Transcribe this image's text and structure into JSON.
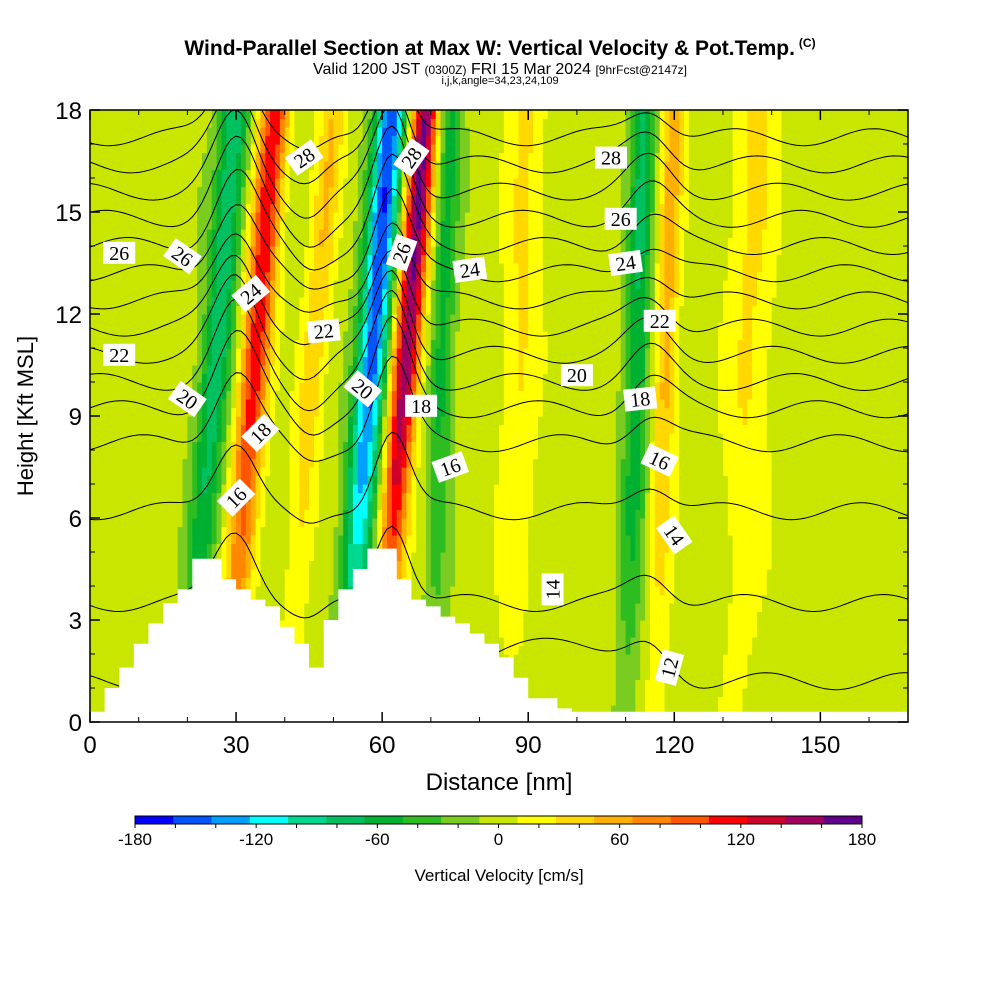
{
  "titles": {
    "main": "Wind-Parallel Section at Max W: Vertical Velocity & Pot.Temp.",
    "copyright_mark": "(C)",
    "valid_prefix": "Valid 1200 JST",
    "valid_utc": "(0300Z)",
    "valid_date": "FRI 15 Mar 2024",
    "forecast_info": "[9hrFcst@2147z]",
    "indices": "i,j,k,angle=34,23,24,109"
  },
  "chart_data": {
    "type": "heatmap",
    "title": "Wind-Parallel Section at Max W: Vertical Velocity & Pot.Temp.",
    "xlabel": "Distance [nm]",
    "ylabel": "Height [Kft MSL]",
    "xlim": [
      0,
      168
    ],
    "ylim": [
      0,
      18
    ],
    "xticks": [
      0,
      30,
      60,
      90,
      120,
      150
    ],
    "yticks": [
      0,
      3,
      6,
      9,
      12,
      15,
      18
    ],
    "colorbar": {
      "label": "Vertical Velocity [cm/s]",
      "range": [
        -180,
        180
      ],
      "step": 20,
      "tick_labels": [
        -180,
        -120,
        -60,
        0,
        60,
        120,
        180
      ],
      "colors": [
        "#0000ff",
        "#0055ff",
        "#00a0ff",
        "#00ffff",
        "#00d890",
        "#00c060",
        "#00b030",
        "#2ebd20",
        "#7acc20",
        "#c8e600",
        "#ffff00",
        "#ffd800",
        "#ffb000",
        "#ff8800",
        "#ff5500",
        "#ff0000",
        "#d0002a",
        "#a00060",
        "#60008a"
      ]
    },
    "velocity_features": [
      {
        "x": 25,
        "peak": -85,
        "width": 3.2
      },
      {
        "x": 33,
        "peak": 130,
        "width": 3.0
      },
      {
        "x": 45,
        "peak": 50,
        "width": 2.8
      },
      {
        "x": 57,
        "peak": -165,
        "width": 3.2
      },
      {
        "x": 64,
        "peak": 175,
        "width": 2.8
      },
      {
        "x": 72,
        "peak": -55,
        "width": 2.5
      },
      {
        "x": 88,
        "peak": 35,
        "width": 4.0
      },
      {
        "x": 112,
        "peak": -70,
        "width": 2.6
      },
      {
        "x": 118,
        "peak": 60,
        "width": 2.4
      },
      {
        "x": 135,
        "peak": 35,
        "width": 5.0
      }
    ],
    "terrain": {
      "x": [
        0,
        3,
        3,
        6,
        6,
        9,
        9,
        12,
        12,
        15,
        15,
        18,
        18,
        21,
        21,
        24,
        24,
        27,
        27,
        30,
        30,
        33,
        33,
        36,
        36,
        39,
        39,
        42,
        42,
        45,
        45,
        48,
        48,
        51,
        51,
        54,
        54,
        57,
        57,
        63,
        63,
        66,
        66,
        69,
        69,
        72,
        72,
        75,
        75,
        78,
        78,
        81,
        81,
        84,
        84,
        87,
        87,
        90,
        90,
        93,
        93,
        96,
        96,
        99,
        99,
        102,
        102,
        105,
        105,
        108,
        108,
        150,
        150,
        155,
        155,
        160,
        160,
        165,
        165,
        168
      ],
      "y": [
        0.3,
        0.3,
        1.0,
        1.0,
        1.6,
        1.6,
        2.3,
        2.3,
        2.9,
        2.9,
        3.5,
        3.5,
        3.9,
        3.9,
        4.8,
        4.8,
        4.8,
        4.8,
        4.2,
        4.2,
        3.9,
        3.9,
        3.6,
        3.6,
        3.4,
        3.4,
        2.8,
        2.8,
        2.3,
        2.3,
        1.6,
        1.6,
        3.0,
        3.0,
        3.9,
        3.9,
        4.5,
        4.5,
        5.1,
        5.1,
        4.2,
        4.2,
        3.6,
        3.6,
        3.4,
        3.4,
        3.1,
        3.1,
        2.9,
        2.9,
        2.6,
        2.6,
        2.3,
        2.3,
        1.9,
        1.9,
        1.3,
        1.3,
        0.7,
        0.7,
        0.7,
        0.7,
        0.4,
        0.4,
        0.3,
        0.3,
        0.3,
        0.3,
        0.3,
        0.3,
        0.3,
        0.3,
        0.3,
        0.3,
        0.3,
        0.3,
        0.3,
        0.3,
        0.3,
        0.3
      ]
    },
    "theta_contours": {
      "levels_c": [
        12,
        13,
        14,
        15,
        16,
        17,
        18,
        19,
        20,
        21,
        22,
        23,
        24,
        25,
        26,
        27,
        28,
        29
      ],
      "base_height_kft": [
        -4.2,
        -3,
        -1,
        1.2,
        3.5,
        6.2,
        8.2,
        9.2,
        10.0,
        10.8,
        11.6,
        12.4,
        13.2,
        14.0,
        14.8,
        15.6,
        16.4,
        17.2
      ],
      "labels": [
        {
          "text": "28",
          "x": 44,
          "y": 16.6,
          "angle": -35
        },
        {
          "text": "28",
          "x": 66,
          "y": 16.6,
          "angle": -55
        },
        {
          "text": "28",
          "x": 107,
          "y": 16.6,
          "angle": 0
        },
        {
          "text": "26",
          "x": 6,
          "y": 13.8,
          "angle": 0
        },
        {
          "text": "26",
          "x": 19,
          "y": 13.7,
          "angle": 35
        },
        {
          "text": "26",
          "x": 64,
          "y": 13.8,
          "angle": -70
        },
        {
          "text": "26",
          "x": 109,
          "y": 14.8,
          "angle": 0
        },
        {
          "text": "24",
          "x": 33,
          "y": 12.6,
          "angle": -40
        },
        {
          "text": "24",
          "x": 78,
          "y": 13.3,
          "angle": -8
        },
        {
          "text": "24",
          "x": 110,
          "y": 13.5,
          "angle": -8
        },
        {
          "text": "22",
          "x": 6,
          "y": 10.8,
          "angle": 0
        },
        {
          "text": "22",
          "x": 48,
          "y": 11.5,
          "angle": -6
        },
        {
          "text": "22",
          "x": 117,
          "y": 11.8,
          "angle": 0
        },
        {
          "text": "20",
          "x": 20,
          "y": 9.5,
          "angle": 35
        },
        {
          "text": "20",
          "x": 56,
          "y": 9.8,
          "angle": 40
        },
        {
          "text": "20",
          "x": 100,
          "y": 10.2,
          "angle": 0
        },
        {
          "text": "18",
          "x": 35,
          "y": 8.5,
          "angle": -45
        },
        {
          "text": "18",
          "x": 68,
          "y": 9.3,
          "angle": 0
        },
        {
          "text": "18",
          "x": 113,
          "y": 9.5,
          "angle": -6
        },
        {
          "text": "16",
          "x": 30,
          "y": 6.6,
          "angle": -45
        },
        {
          "text": "16",
          "x": 74,
          "y": 7.5,
          "angle": -20
        },
        {
          "text": "16",
          "x": 117,
          "y": 7.7,
          "angle": 25
        },
        {
          "text": "14",
          "x": 95,
          "y": 3.9,
          "angle": -90
        },
        {
          "text": "14",
          "x": 120,
          "y": 5.5,
          "angle": 55
        },
        {
          "text": "12",
          "x": 119,
          "y": 1.6,
          "angle": -75
        }
      ]
    }
  }
}
